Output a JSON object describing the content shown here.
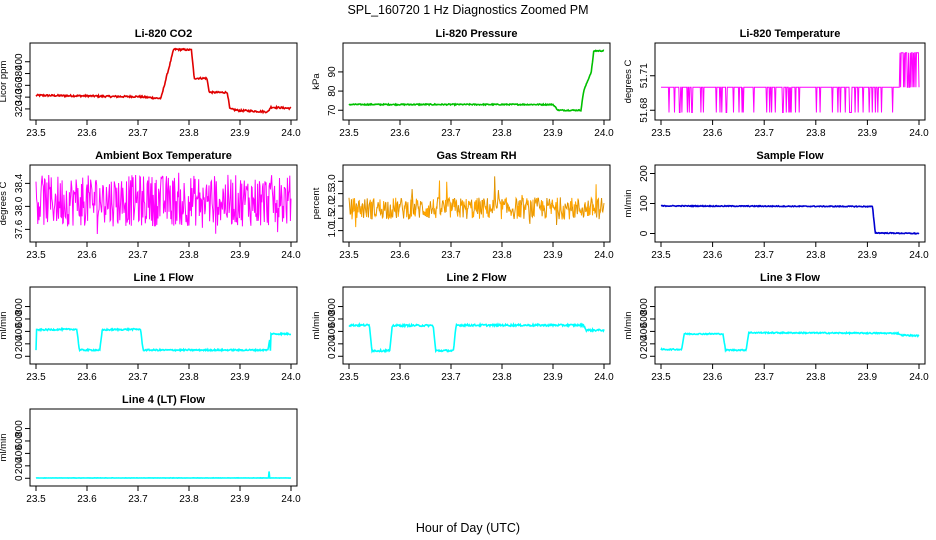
{
  "title": "SPL_160720  1 Hz Diagnostics Zoomed PM",
  "xlabel": "Hour of Day (UTC)",
  "chart_data": [
    {
      "type": "line",
      "title": "Li-820 CO2",
      "ylabel": "Licor ppm",
      "color": "#e00000",
      "xlim": [
        23.5,
        24.0
      ],
      "ylim": [
        308,
        425
      ],
      "x_ticks": [
        "23.5",
        "23.6",
        "23.7",
        "23.8",
        "23.9",
        "24.0"
      ],
      "y_ticks": [
        {
          "v": 320,
          "label": "320"
        },
        {
          "v": 340,
          "label": "340"
        },
        {
          "v": 360,
          "label": "360"
        },
        {
          "v": 380,
          "label": "380"
        },
        {
          "v": 400,
          "label": "400"
        }
      ],
      "gen": "co2",
      "noise": 1.5,
      "spikes": [],
      "series": [
        {
          "x": [
            23.5,
            23.6,
            23.65,
            23.7,
            23.74,
            23.745,
            23.77,
            23.775,
            23.805,
            23.81,
            23.835,
            23.84,
            23.875,
            23.88,
            23.9,
            23.91,
            23.955,
            23.96,
            24.0
          ],
          "y": [
            343,
            342,
            341,
            341,
            338,
            338,
            421,
            421,
            420,
            372,
            372,
            348,
            348,
            320,
            317,
            317,
            315,
            323,
            321
          ]
        }
      ]
    },
    {
      "type": "line",
      "title": "Li-820 Pressure",
      "ylabel": "kPa",
      "color": "#00c000",
      "xlim": [
        23.5,
        24.0
      ],
      "ylim": [
        67,
        103
      ],
      "x_ticks": [
        "23.5",
        "23.6",
        "23.7",
        "23.8",
        "23.9",
        "24.0"
      ],
      "y_ticks": [
        {
          "v": 70,
          "label": "70"
        },
        {
          "v": 80,
          "label": "80"
        },
        {
          "v": 90,
          "label": "90"
        }
      ],
      "gen": "pressure",
      "noise": 0.3,
      "spikes": [],
      "series": [
        {
          "x": [
            23.5,
            23.9,
            23.91,
            23.955,
            23.96,
            23.975,
            23.98,
            24.0
          ],
          "y": [
            73,
            73,
            70,
            70,
            80,
            90,
            101,
            101
          ]
        }
      ]
    },
    {
      "type": "line",
      "title": "Li-820 Temperature",
      "ylabel": "degrees C",
      "color": "#ff00ff",
      "xlim": [
        23.5,
        24.0
      ],
      "ylim": [
        51.675,
        51.735
      ],
      "x_ticks": [
        "23.5",
        "23.6",
        "23.7",
        "23.8",
        "23.9",
        "24.0"
      ],
      "y_ticks": [
        {
          "v": 51.68,
          "label": "51.68"
        },
        {
          "v": 51.71,
          "label": "51.71"
        }
      ],
      "gen": "temp",
      "noise": 0,
      "spikes": [],
      "series": [
        {
          "x": [
            23.5,
            24.0
          ],
          "y": [
            51.7,
            51.7
          ]
        }
      ]
    },
    {
      "type": "line",
      "title": "Ambient Box Temperature",
      "ylabel": "degrees C",
      "color": "#ff00ff",
      "xlim": [
        23.5,
        24.0
      ],
      "ylim": [
        37.45,
        38.65
      ],
      "x_ticks": [
        "23.5",
        "23.6",
        "23.7",
        "23.8",
        "23.9",
        "24.0"
      ],
      "y_ticks": [
        {
          "v": 37.6,
          "label": "37.6"
        },
        {
          "v": 38.0,
          "label": "38.0"
        },
        {
          "v": 38.4,
          "label": "38.4"
        }
      ],
      "gen": "ambient",
      "noise": 0,
      "spikes": [],
      "series": [
        {
          "x": [
            23.5,
            24.0
          ],
          "y": [
            38.05,
            38.05
          ]
        }
      ]
    },
    {
      "type": "line",
      "title": "Gas Stream RH",
      "ylabel": "percent",
      "color": "#ffa500",
      "xlim": [
        23.5,
        24.0
      ],
      "ylim": [
        0.7,
        3.5
      ],
      "x_ticks": [
        "23.5",
        "23.6",
        "23.7",
        "23.8",
        "23.9",
        "24.0"
      ],
      "y_ticks": [
        {
          "v": 1.0,
          "label": "1.0"
        },
        {
          "v": 1.5,
          "label": "1.5"
        },
        {
          "v": 2.0,
          "label": "2.0"
        },
        {
          "v": 2.5,
          "label": "2.5"
        },
        {
          "v": 3.0,
          "label": "3.0"
        }
      ],
      "gen": "rh",
      "noise": 0,
      "spikes": [],
      "series": [
        {
          "x": [
            23.5,
            24.0
          ],
          "y": [
            1.9,
            1.9
          ]
        }
      ]
    },
    {
      "type": "line",
      "title": "Sample Flow",
      "ylabel": "ml/min",
      "color": "#0000d0",
      "xlim": [
        23.5,
        24.0
      ],
      "ylim": [
        -15,
        215
      ],
      "x_ticks": [
        "23.5",
        "23.6",
        "23.7",
        "23.8",
        "23.9",
        "24.0"
      ],
      "y_ticks": [
        {
          "v": 0,
          "label": "0"
        },
        {
          "v": 100,
          "label": "100"
        },
        {
          "v": 200,
          "label": "200"
        }
      ],
      "gen": "plain",
      "noise": 1.5,
      "spikes": [],
      "series": [
        {
          "x": [
            23.5,
            23.91,
            23.915,
            24.0
          ],
          "y": [
            92,
            90,
            2,
            0
          ]
        }
      ]
    },
    {
      "type": "line",
      "title": "Line 1 Flow",
      "ylabel": "ml/min",
      "color": "#00ffff",
      "xlim": [
        23.5,
        24.0
      ],
      "ylim": [
        -60,
        1050
      ],
      "x_ticks": [
        "23.5",
        "23.6",
        "23.7",
        "23.8",
        "23.9",
        "24.0"
      ],
      "y_ticks": [
        {
          "v": 0,
          "label": "0"
        },
        {
          "v": 200,
          "label": "200"
        },
        {
          "v": 400,
          "label": "400"
        },
        {
          "v": 600,
          "label": "600"
        },
        {
          "v": 800,
          "label": "800"
        }
      ],
      "gen": "plain",
      "noise": 12,
      "spikes": [
        [
          23.5,
          100
        ],
        [
          23.96,
          90
        ]
      ],
      "series": [
        {
          "x": [
            23.5,
            23.505,
            23.58,
            23.585,
            23.625,
            23.63,
            23.705,
            23.71,
            23.955,
            23.96,
            24.0
          ],
          "y": [
            420,
            425,
            435,
            100,
            100,
            425,
            435,
            100,
            100,
            360,
            360
          ]
        }
      ]
    },
    {
      "type": "line",
      "title": "Line 2 Flow",
      "ylabel": "ml/min",
      "color": "#00ffff",
      "xlim": [
        23.5,
        24.0
      ],
      "ylim": [
        -60,
        1050
      ],
      "x_ticks": [
        "23.5",
        "23.6",
        "23.7",
        "23.8",
        "23.9",
        "24.0"
      ],
      "y_ticks": [
        {
          "v": 0,
          "label": "0"
        },
        {
          "v": 200,
          "label": "200"
        },
        {
          "v": 400,
          "label": "400"
        },
        {
          "v": 600,
          "label": "600"
        },
        {
          "v": 800,
          "label": "800"
        }
      ],
      "gen": "plain",
      "noise": 15,
      "spikes": [],
      "series": [
        {
          "x": [
            23.5,
            23.54,
            23.545,
            23.58,
            23.585,
            23.665,
            23.67,
            23.705,
            23.71,
            23.96,
            23.965,
            24.0
          ],
          "y": [
            500,
            500,
            90,
            90,
            495,
            495,
            90,
            90,
            500,
            500,
            420,
            420
          ]
        }
      ]
    },
    {
      "type": "line",
      "title": "Line 3 Flow",
      "ylabel": "ml/min",
      "color": "#00ffff",
      "xlim": [
        23.5,
        24.0
      ],
      "ylim": [
        -60,
        1050
      ],
      "x_ticks": [
        "23.5",
        "23.6",
        "23.7",
        "23.8",
        "23.9",
        "24.0"
      ],
      "y_ticks": [
        {
          "v": 0,
          "label": "0"
        },
        {
          "v": 200,
          "label": "200"
        },
        {
          "v": 400,
          "label": "400"
        },
        {
          "v": 600,
          "label": "600"
        },
        {
          "v": 800,
          "label": "800"
        }
      ],
      "gen": "plain",
      "noise": 10,
      "spikes": [
        [
          23.5,
          100
        ]
      ],
      "series": [
        {
          "x": [
            23.5,
            23.505,
            23.54,
            23.545,
            23.62,
            23.625,
            23.665,
            23.67,
            23.96,
            23.965,
            24.0
          ],
          "y": [
            110,
            110,
            110,
            360,
            360,
            100,
            100,
            380,
            370,
            340,
            330
          ]
        }
      ]
    },
    {
      "type": "line",
      "title": "Line 4 (LT) Flow",
      "ylabel": "ml/min",
      "color": "#00ffff",
      "xlim": [
        23.5,
        24.0
      ],
      "ylim": [
        -60,
        1050
      ],
      "x_ticks": [
        "23.5",
        "23.6",
        "23.7",
        "23.8",
        "23.9",
        "24.0"
      ],
      "y_ticks": [
        {
          "v": 0,
          "label": "0"
        },
        {
          "v": 200,
          "label": "200"
        },
        {
          "v": 400,
          "label": "400"
        },
        {
          "v": 600,
          "label": "600"
        },
        {
          "v": 800,
          "label": "800"
        }
      ],
      "gen": "plain",
      "noise": 2,
      "spikes": [
        [
          23.957,
          110
        ]
      ],
      "series": [
        {
          "x": [
            23.5,
            24.0
          ],
          "y": [
            5,
            5
          ]
        }
      ]
    }
  ]
}
